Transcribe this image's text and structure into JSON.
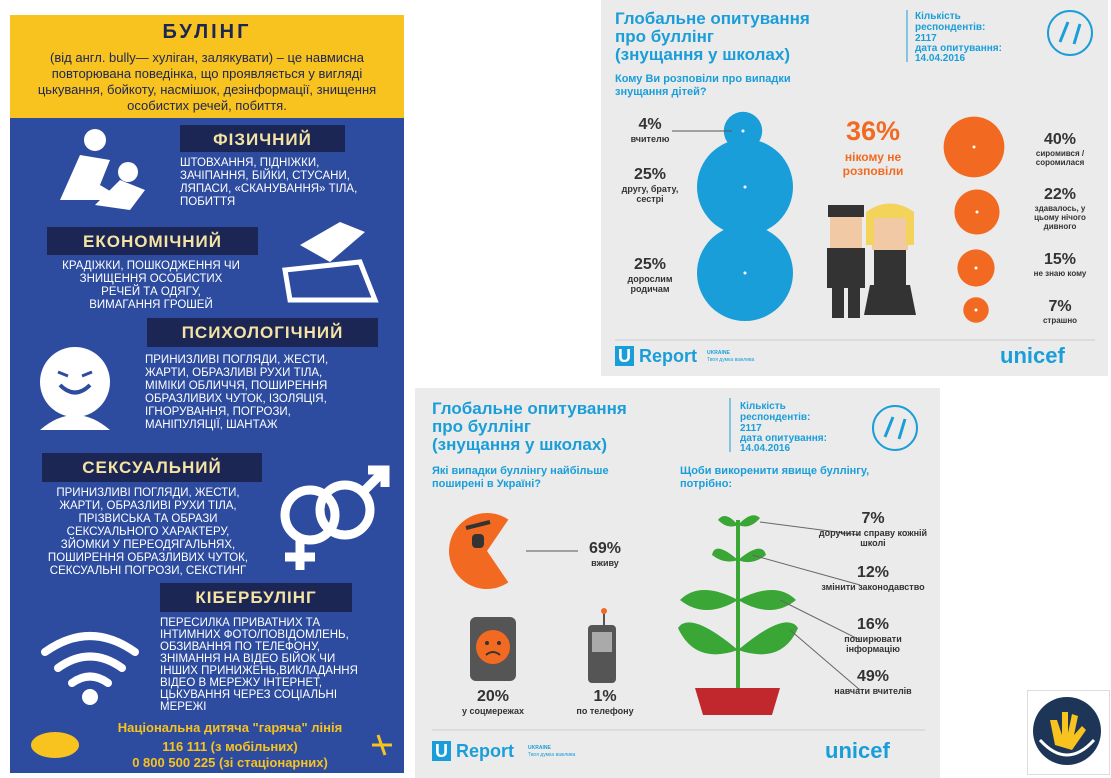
{
  "bullying_poster": {
    "title": "БУЛІНГ",
    "definition": "(від англ. bully— хуліган, залякувати) – це навмисна повторювана поведінка, що проявляється у вигляді цькування, бойкоту, насмішок, дезінформації, знищення особистих речей, побиття.",
    "types": [
      {
        "name": "ФІЗИЧНИЙ",
        "description_lines": [
          "ШТОВХАННЯ, ПІДНІЖКИ,",
          "ЗАЧІПАННЯ, БІЙКИ, СТУСАНИ,",
          "ЛЯПАСИ, «СКАНУВАННЯ» ТІЛА,",
          "ПОБИТТЯ"
        ]
      },
      {
        "name": "ЕКОНОМІЧНИЙ",
        "description_lines": [
          "КРАДІЖКИ, ПОШКОДЖЕННЯ ЧИ",
          "ЗНИЩЕННЯ ОСОБИСТИХ",
          "РЕЧЕЙ ТА ОДЯГУ,",
          "ВИМАГАННЯ ГРОШЕЙ"
        ]
      },
      {
        "name": "ПСИХОЛОГІЧНИЙ",
        "description_lines": [
          "ПРИНИЗЛИВІ ПОГЛЯДИ, ЖЕСТИ,",
          "ЖАРТИ, ОБРАЗЛИВІ РУХИ ТІЛА,",
          "МІМІКИ ОБЛИЧЧЯ, ПОШИРЕННЯ",
          "ОБРАЗЛИВИХ ЧУТОК, ІЗОЛЯЦІЯ,",
          "ІГНОРУВАННЯ, ПОГРОЗИ,",
          "МАНІПУЛЯЦІЇ, ШАНТАЖ"
        ]
      },
      {
        "name": "СЕКСУАЛЬНИЙ",
        "description_lines": [
          "ПРИНИЗЛИВІ ПОГЛЯДИ, ЖЕСТИ,",
          "ЖАРТИ, ОБРАЗЛИВІ РУХИ ТІЛА,",
          "ПРІЗВИСЬКА ТА ОБРАЗИ",
          "СЕКСУАЛЬНОГО ХАРАКТЕРУ,",
          "ЗЙОМКИ У ПЕРЕОДЯГАЛЬНЯХ,",
          "ПОШИРЕННЯ ОБРАЗЛИВИХ ЧУТОК,",
          "СЕКСУАЛЬНІ ПОГРОЗИ, СЕКСТИНГ"
        ]
      },
      {
        "name": "КІБЕРБУЛІНГ",
        "description_lines": [
          "ПЕРЕСИЛКА ПРИВАТНИХ ТА",
          "ІНТИМНИХ ФОТО/ПОВІДОМЛЕНЬ,",
          "ОБЗИВАННЯ ПО ТЕЛЕФОНУ,",
          "ЗНІМАННЯ НА ВІДЕО БІЙОК ЧИ",
          "ІНШИХ ПРИНИЖЕНЬ,ВИКЛАДАННЯ",
          "ВІДЕО В МЕРЕЖУ ІНТЕРНЕТ,",
          "ЦЬКУВАННЯ ЧЕРЕЗ СОЦІАЛЬНІ",
          "МЕРЕЖІ"
        ]
      }
    ],
    "hotline": {
      "title": "Національна дитяча \"гаряча\" лінія",
      "numbers": [
        "116 111 (з мобільних)",
        "0 800 500 225 (зі стаціонарних)"
      ]
    }
  },
  "survey_who_told": {
    "title_lines": [
      "Глобальне опитування",
      "про буллінг",
      "(знущання у школах)"
    ],
    "respondents_label": "Кількість респондентів:",
    "respondents": "2117",
    "date_label": "дата опитування:",
    "date": "14.04.2016",
    "question": "Кому Ви розповіли про випадки знущання дітей?",
    "told": [
      {
        "value": 4,
        "value_label": "4%",
        "label": "вчителю"
      },
      {
        "value": 25,
        "value_label": "25%",
        "label": "другу, брату, сестрі"
      },
      {
        "value": 25,
        "value_label": "25%",
        "label": "дорослим родичам"
      }
    ],
    "nobody": {
      "percent": "36%",
      "label": "нікому не розповіли"
    },
    "reasons": [
      {
        "value": 40,
        "value_label": "40%",
        "label": "сиромився / соромилася"
      },
      {
        "value": 22,
        "value_label": "22%",
        "label": "здавалось, у цьому нічого дивного"
      },
      {
        "value": 15,
        "value_label": "15%",
        "label": "не знаю кому"
      },
      {
        "value": 7,
        "value_label": "7%",
        "label": "страшно"
      }
    ],
    "logos": {
      "ureport_mark": "U",
      "ureport": "Report",
      "ureport_country": "UKRAINE",
      "ureport_tagline": "Твоя думка важлива",
      "unicef": "unicef"
    }
  },
  "survey_types": {
    "title_lines": [
      "Глобальне опитування",
      "про буллінг",
      "(знущання у школах)"
    ],
    "respondents_label": "Кількість респондентів:",
    "respondents": "2117",
    "date_label": "дата опитування:",
    "date": "14.04.2016",
    "question_common": "Які випадки буллінгу найбільше поширені в Україні?",
    "live": {
      "value": 69,
      "value_label": "69%",
      "label": "вживу"
    },
    "channels": [
      {
        "percent": "20%",
        "label": "у соцмережах"
      },
      {
        "percent": "1%",
        "label": "по телефону"
      }
    ],
    "question_solutions": "Щоби викоренити явище буллінгу, потрібно:",
    "solutions": [
      {
        "percent": "7%",
        "label": "доручити справу кожній школі"
      },
      {
        "percent": "12%",
        "label": "змінити законодавство"
      },
      {
        "percent": "16%",
        "label": "поширювати інформацію"
      },
      {
        "percent": "49%",
        "label": "навчати вчителів"
      }
    ],
    "logos": {
      "ureport_mark": "U",
      "ureport": "Report",
      "ureport_country": "UKRAINE",
      "ureport_tagline": "Твоя думка важлива",
      "unicef": "unicef"
    }
  }
}
